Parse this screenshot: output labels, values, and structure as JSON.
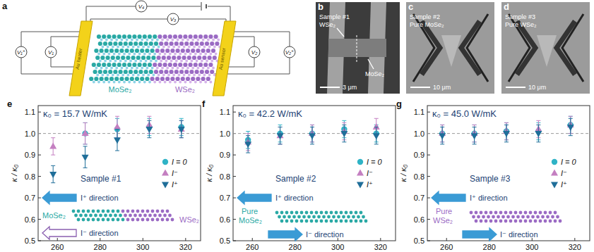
{
  "panel_a": {
    "letter": "a",
    "voltmeters": [
      "V₁⁺",
      "V₁",
      "V₄",
      "V₃",
      "V₂",
      "V₂⁺"
    ],
    "electrodes": [
      "Au heater",
      "Au sensor"
    ],
    "materials": [
      "MoSe₂",
      "WSe₂"
    ]
  },
  "sem_panels": [
    {
      "letter": "b",
      "labels": [
        "Sample #1",
        "WSe₂",
        "MoSe₂"
      ],
      "scale_bar": "3 μm"
    },
    {
      "letter": "c",
      "labels": [
        "Sample #2",
        "Pure MoSe₂"
      ],
      "scale_bar": "10 μm"
    },
    {
      "letter": "d",
      "labels": [
        "Sample #3",
        "Pure WSe₂"
      ],
      "scale_bar": "10 μm"
    }
  ],
  "chart_data": [
    {
      "type": "scatter",
      "letter": "e",
      "title": "κ₀ = 15.7 W/mK",
      "y_label": "κ / κ₀",
      "x": [
        258,
        273,
        288,
        303,
        318
      ],
      "xlim": [
        251,
        327
      ],
      "xticks": [
        260,
        280,
        300,
        320
      ],
      "ylim": [
        0.5,
        1.13
      ],
      "yticks": [
        0.5,
        0.6,
        0.7,
        0.8,
        0.9,
        {
          "value": 1,
          "label": "1.0"
        },
        1.1
      ],
      "reference_line": 1,
      "legend": "right",
      "sample": "Sample #1",
      "arrows": [
        "I⁺ direction",
        "I⁻ direction"
      ],
      "materials": [
        "MoSe₂",
        "WSe₂"
      ],
      "series": [
        {
          "name": "I = 0",
          "color": "#2fb3c6",
          "marker": "circle",
          "values": [
            null,
            1,
            1.02,
            1.03,
            1.03
          ],
          "errors": [
            null,
            0.05,
            0.05,
            0.04,
            0.04
          ]
        },
        {
          "name": "I⁻",
          "color": "#c47fc1",
          "marker": "triangle-up",
          "values": [
            0.94,
            1,
            1.03,
            1.04,
            1.02
          ],
          "errors": [
            0.04,
            0.05,
            0.05,
            0.04,
            0.04
          ]
        },
        {
          "name": "I⁺",
          "color": "#1f6e99",
          "marker": "triangle-down",
          "values": [
            0.81,
            0.89,
            0.97,
            1.02,
            1.02
          ],
          "errors": [
            0.04,
            0.05,
            0.05,
            0.04,
            0.04
          ]
        }
      ]
    },
    {
      "type": "scatter",
      "letter": "f",
      "title": "κ₀ = 42.2 W/mK",
      "y_label": "κ / κ₀",
      "x": [
        258,
        273,
        288,
        303,
        318
      ],
      "xlim": [
        251,
        327
      ],
      "xticks": [
        260,
        280,
        300,
        320
      ],
      "ylim": [
        0.5,
        1.13
      ],
      "yticks": [
        0.5,
        0.6,
        0.7,
        0.8,
        0.9,
        {
          "value": 1,
          "label": "1.0"
        },
        1.1
      ],
      "reference_line": 1,
      "legend": "right",
      "sample": "Sample #2",
      "arrows": [
        "I⁺ direction",
        "I⁻ direction"
      ],
      "materials": [
        "Pure",
        "MoSe₂"
      ],
      "series": [
        {
          "name": "I = 0",
          "color": "#2fb3c6",
          "marker": "circle",
          "values": [
            0.97,
            1,
            1,
            1.02,
            1
          ],
          "errors": [
            0.04,
            0.04,
            0.04,
            0.04,
            0.04
          ]
        },
        {
          "name": "I⁻",
          "color": "#c47fc1",
          "marker": "triangle-up",
          "values": [
            0.96,
            0.99,
            1,
            1.01,
            1.03
          ],
          "errors": [
            0.04,
            0.04,
            0.04,
            0.04,
            0.04
          ]
        },
        {
          "name": "I⁺",
          "color": "#1f6e99",
          "marker": "triangle-down",
          "values": [
            0.95,
            0.99,
            0.99,
            1,
            0.99
          ],
          "errors": [
            0.04,
            0.04,
            0.04,
            0.04,
            0.04
          ]
        }
      ]
    },
    {
      "type": "scatter",
      "letter": "g",
      "title": "κ₀ = 45.0 W/mK",
      "y_label": "κ / κ₀",
      "x": [
        258,
        273,
        288,
        303,
        318
      ],
      "xlim": [
        251,
        327
      ],
      "xticks": [
        260,
        280,
        300,
        320
      ],
      "ylim": [
        0.5,
        1.13
      ],
      "yticks": [
        0.5,
        0.6,
        0.7,
        0.8,
        0.9,
        {
          "value": 1,
          "label": "1.0"
        },
        1.1
      ],
      "reference_line": 1,
      "legend": "right",
      "sample": "Sample #3",
      "arrows": [
        "I⁺ direction",
        "I⁻ direction"
      ],
      "materials": [
        "Pure",
        "WSe₂"
      ],
      "series": [
        {
          "name": "I = 0",
          "color": "#2fb3c6",
          "marker": "circle",
          "values": [
            1,
            1,
            1.01,
            1.01,
            1.04
          ],
          "errors": [
            0.04,
            0.04,
            0.04,
            0.04,
            0.04
          ]
        },
        {
          "name": "I⁻",
          "color": "#c47fc1",
          "marker": "triangle-up",
          "values": [
            1,
            1,
            1.01,
            1.02,
            1.04
          ],
          "errors": [
            0.04,
            0.04,
            0.04,
            0.04,
            0.04
          ]
        },
        {
          "name": "I⁺",
          "color": "#1f6e99",
          "marker": "triangle-down",
          "values": [
            0.99,
            0.99,
            1,
            1,
            1.03
          ],
          "errors": [
            0.04,
            0.04,
            0.04,
            0.04,
            0.04
          ]
        }
      ]
    }
  ]
}
